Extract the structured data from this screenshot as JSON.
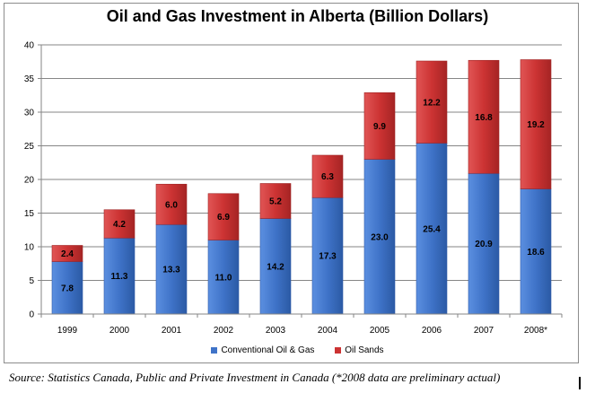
{
  "chart_data": {
    "type": "bar",
    "stacked": true,
    "title": "Oil and Gas Investment in Alberta (Billion Dollars)",
    "categories": [
      "1999",
      "2000",
      "2001",
      "2002",
      "2003",
      "2004",
      "2005",
      "2006",
      "2007",
      "2008*"
    ],
    "series": [
      {
        "name": "Conventional Oil & Gas",
        "color": "#3f73c8",
        "values": [
          7.8,
          11.3,
          13.3,
          11.0,
          14.2,
          17.3,
          23.0,
          25.4,
          20.9,
          18.6
        ],
        "labels": [
          "7.8",
          "11.3",
          "13.3",
          "11.0",
          "14.2",
          "17.3",
          "23.0",
          "25.4",
          "20.9",
          "18.6"
        ]
      },
      {
        "name": "Oil Sands",
        "color": "#cc3333",
        "values": [
          2.4,
          4.2,
          6.0,
          6.9,
          5.2,
          6.3,
          9.9,
          12.2,
          16.8,
          19.2
        ],
        "labels": [
          "2.4",
          "4.2",
          "6.0",
          "6.9",
          "5.2",
          "6.3",
          "9.9",
          "12.2",
          "16.8",
          "19.2"
        ]
      }
    ],
    "yticks": [
      "0",
      "5",
      "10",
      "15",
      "20",
      "25",
      "30",
      "35",
      "40"
    ],
    "ylim": [
      0,
      40
    ],
    "grid": true,
    "legend": "bottom"
  },
  "source_note": "Source: Statistics Canada, Public and Private Investment in Canada (*2008 data are preliminary actual)"
}
